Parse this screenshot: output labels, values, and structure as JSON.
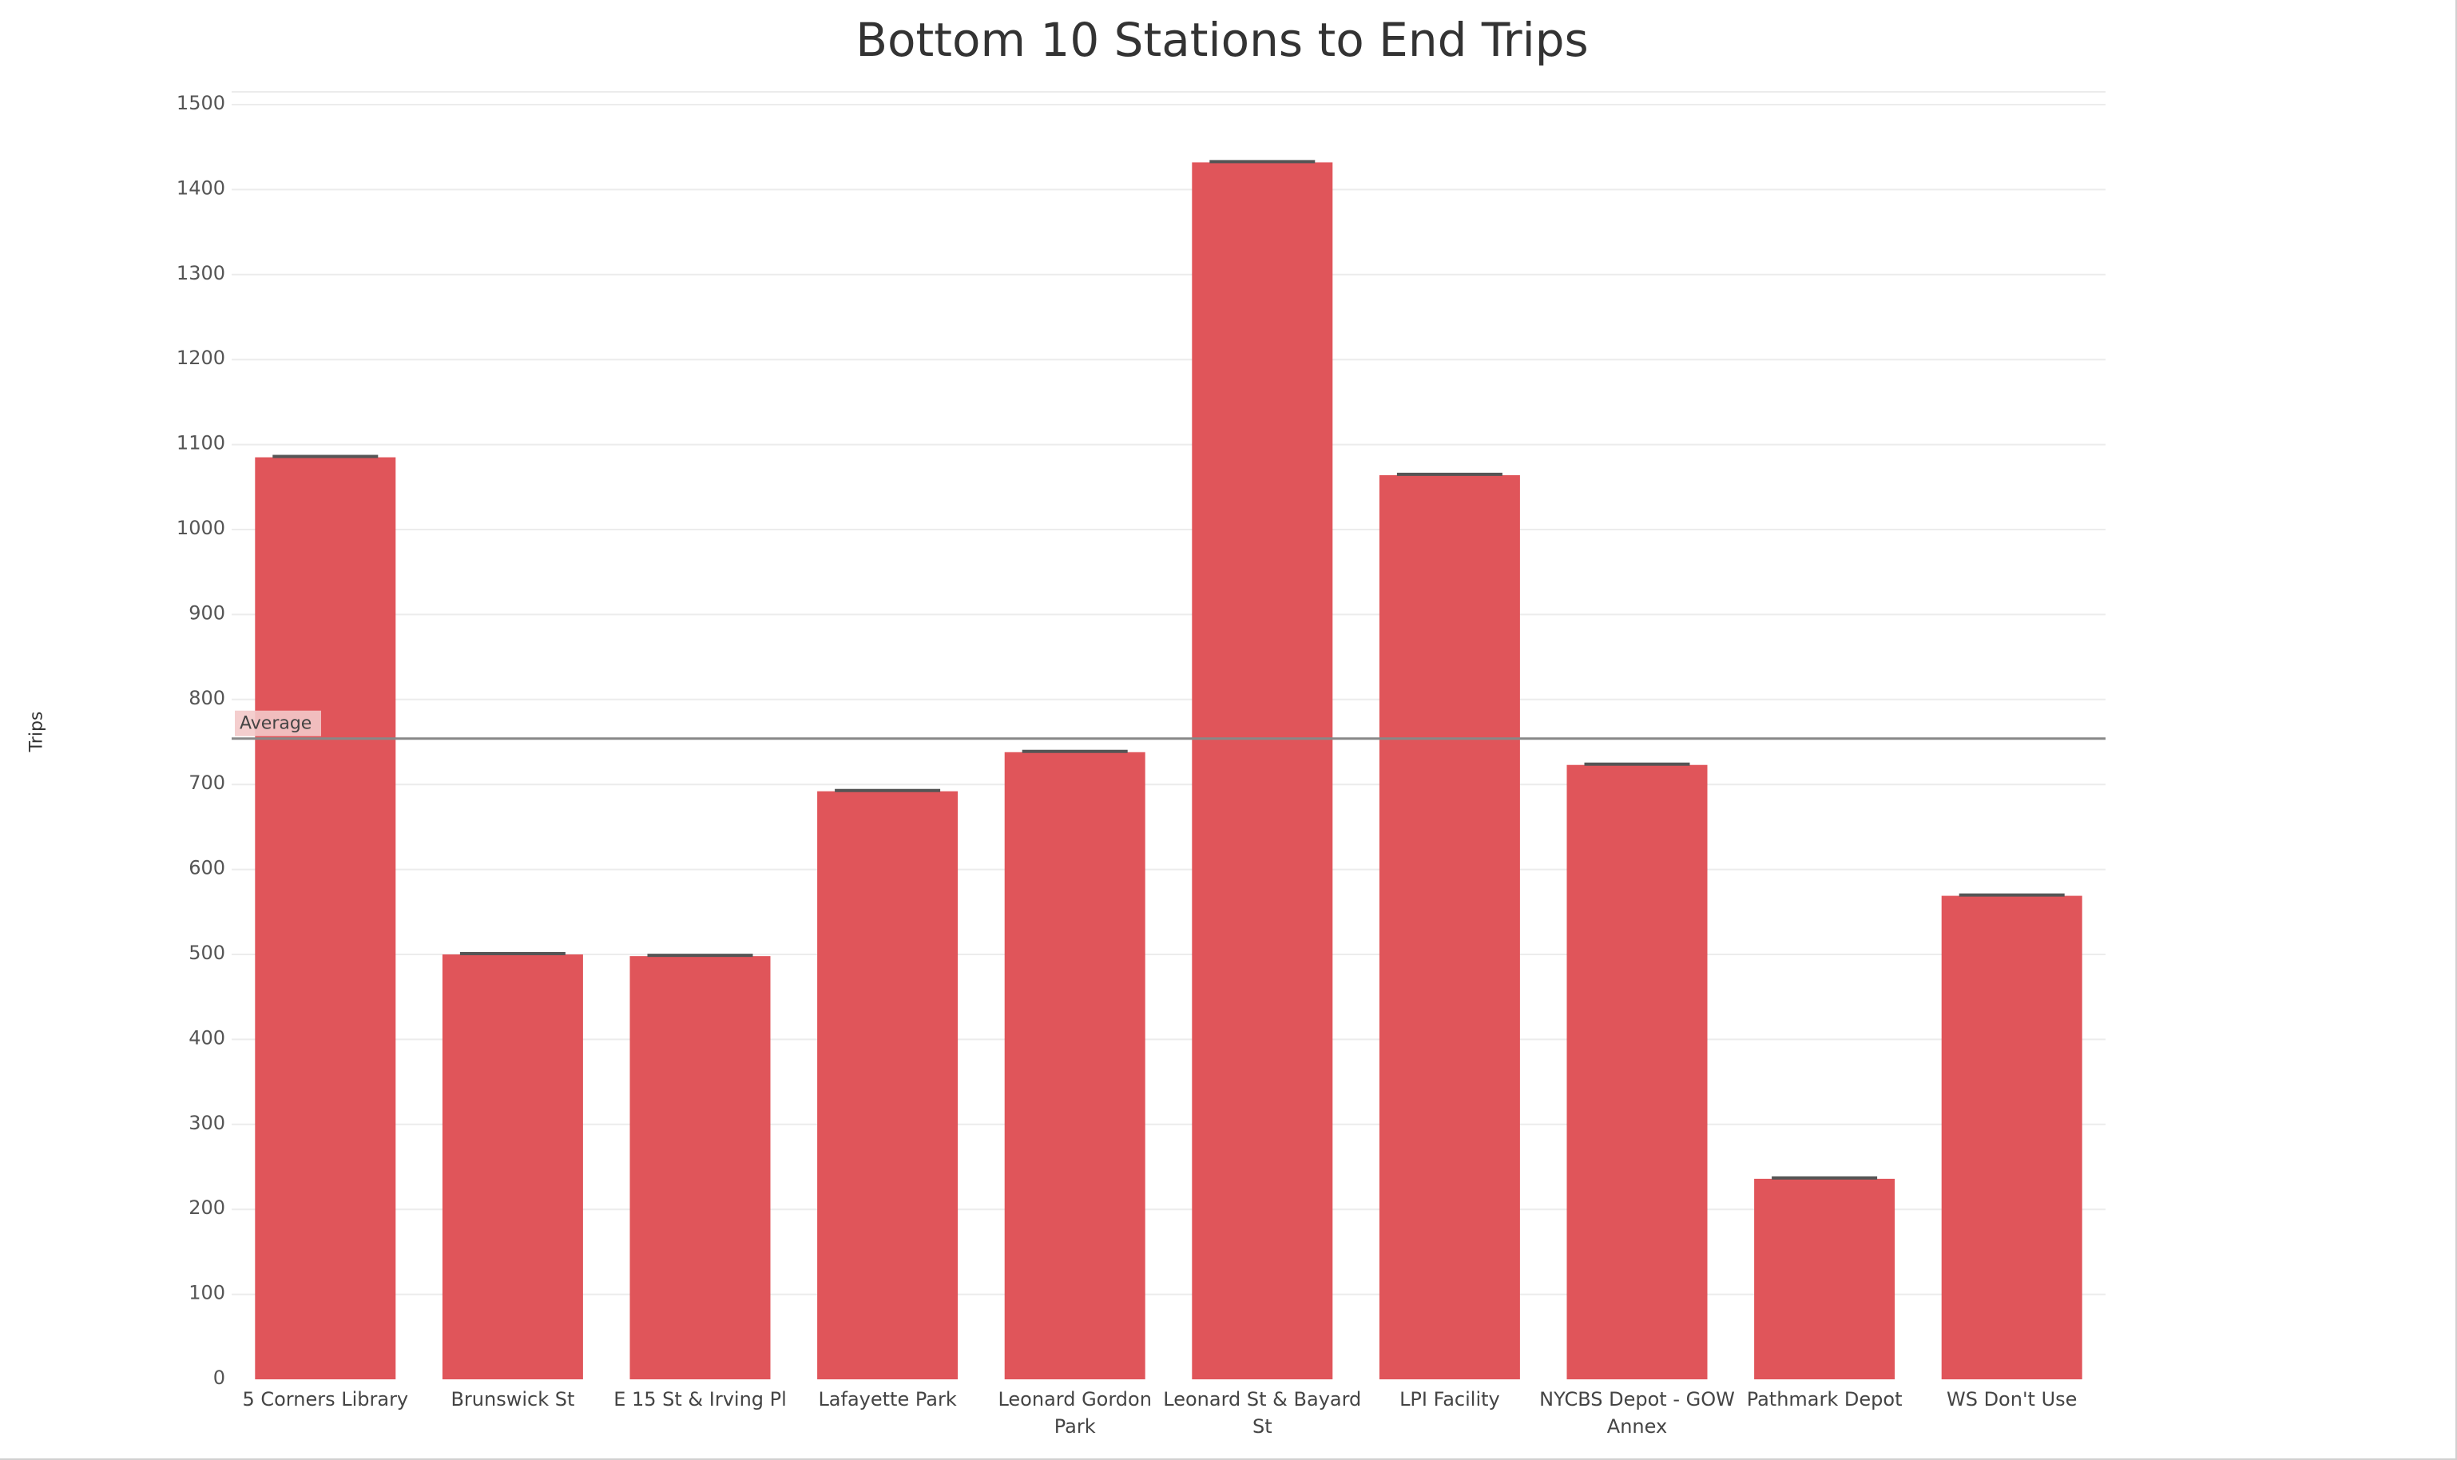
{
  "chart_data": {
    "type": "bar",
    "title": "Bottom 10 Stations to End Trips",
    "xlabel": "",
    "ylabel": "Trips",
    "ylim": [
      0,
      1500
    ],
    "yticks": [
      0,
      100,
      200,
      300,
      400,
      500,
      600,
      700,
      800,
      900,
      1000,
      1100,
      1200,
      1300,
      1400,
      1500
    ],
    "categories": [
      "5 Corners Library",
      "Brunswick St",
      "E 15 St & Irving Pl",
      "Lafayette Park",
      "Leonard Gordon Park",
      "Leonard St & Bayard St",
      "LPI Facility",
      "NYCBS Depot - GOW Annex",
      "Pathmark Depot",
      "WS Don't Use"
    ],
    "category_label_lines": [
      [
        "5 Corners Library"
      ],
      [
        "Brunswick St"
      ],
      [
        "E 15 St & Irving Pl"
      ],
      [
        "Lafayette Park"
      ],
      [
        "Leonard Gordon",
        "Park"
      ],
      [
        "Leonard St & Bayard",
        "St"
      ],
      [
        "LPI Facility"
      ],
      [
        "NYCBS Depot - GOW",
        "Annex"
      ],
      [
        "Pathmark Depot"
      ],
      [
        "WS Don't Use"
      ]
    ],
    "values": [
      1085,
      500,
      498,
      692,
      738,
      1432,
      1064,
      723,
      236,
      569
    ],
    "reference_line": {
      "label": "Average",
      "value": 754
    },
    "bar_color": "#e0555a",
    "cap_color": "#555555",
    "grid": true,
    "gridline_color": "#ececec",
    "reference_line_color": "#888888"
  }
}
